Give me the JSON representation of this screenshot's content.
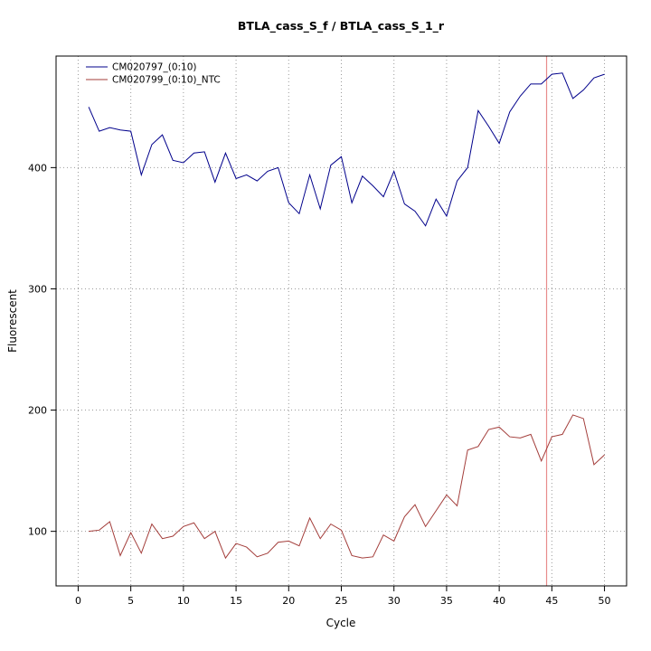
{
  "window": {
    "title": "BTLA_cass_S_f / BTLA_cass_S_1_r"
  },
  "chart_data": {
    "type": "line",
    "title": "BTLA_cass_S_f / BTLA_cass_S_1_r",
    "xlabel": "Cycle",
    "ylabel": "Fluorescent",
    "xlim": [
      -2.1,
      52.1
    ],
    "ylim": [
      55,
      492
    ],
    "x_ticks": [
      0,
      5,
      10,
      15,
      20,
      25,
      30,
      35,
      40,
      45,
      50
    ],
    "y_ticks": [
      100,
      200,
      300,
      400
    ],
    "grid": "dotted",
    "legend_position": "top-left",
    "threshold_line_x": 44.5,
    "threshold_color": "#e88c8c",
    "x": [
      1,
      2,
      3,
      4,
      5,
      6,
      7,
      8,
      9,
      10,
      11,
      12,
      13,
      14,
      15,
      16,
      17,
      18,
      19,
      20,
      21,
      22,
      23,
      24,
      25,
      26,
      27,
      28,
      29,
      30,
      31,
      32,
      33,
      34,
      35,
      36,
      37,
      38,
      39,
      40,
      41,
      42,
      43,
      44,
      45,
      46,
      47,
      48,
      49,
      50
    ],
    "series": [
      {
        "name": "CM020797_(0:10)",
        "color": "#00008b",
        "values": [
          450,
          430,
          433,
          431,
          430,
          394,
          419,
          427,
          406,
          404,
          412,
          413,
          388,
          412,
          391,
          394,
          389,
          397,
          400,
          371,
          362,
          394,
          366,
          402,
          409,
          371,
          393,
          385,
          376,
          397,
          370,
          364,
          352,
          374,
          360,
          389,
          400,
          447,
          434,
          420,
          446,
          459,
          469,
          469,
          477,
          478,
          457,
          464,
          474,
          477
        ]
      },
      {
        "name": "CM020799_(0:10)_NTC",
        "color": "#a33d3a",
        "values": [
          100,
          101,
          108,
          80,
          99,
          82,
          106,
          94,
          96,
          104,
          107,
          94,
          100,
          78,
          90,
          87,
          79,
          82,
          91,
          92,
          88,
          111,
          94,
          106,
          101,
          80,
          78,
          79,
          97,
          92,
          112,
          122,
          104,
          117,
          130,
          121,
          167,
          170,
          184,
          186,
          178,
          177,
          180,
          158,
          178,
          180,
          196,
          193,
          155,
          163
        ]
      }
    ]
  }
}
